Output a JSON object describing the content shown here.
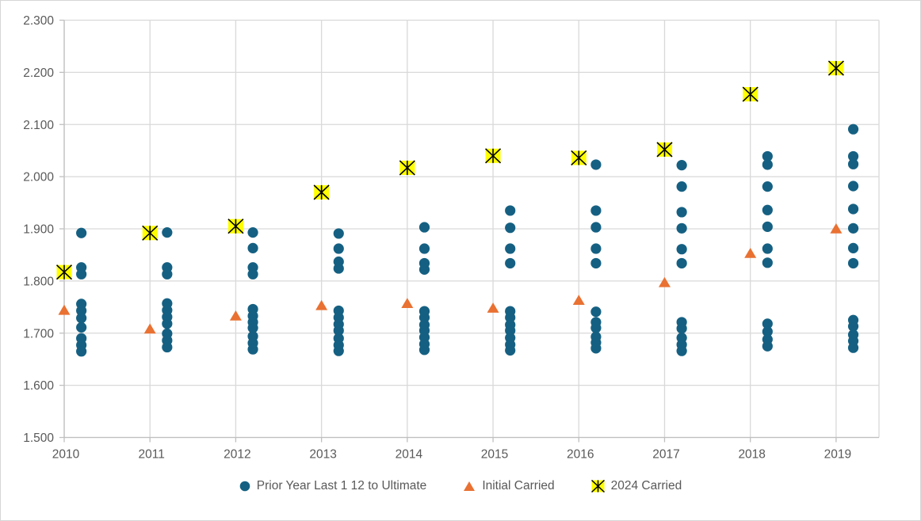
{
  "chart_data": {
    "type": "scatter",
    "title": "",
    "xlabel": "",
    "ylabel": "",
    "grid": true,
    "legend_position": "bottom",
    "x_axis": {
      "min": 2010,
      "max": 2019.5,
      "tick_years": [
        2010,
        2011,
        2012,
        2013,
        2014,
        2015,
        2016,
        2017,
        2018,
        2019
      ],
      "tick_labels": [
        "2010",
        "2011",
        "2012",
        "2013",
        "2014",
        "2015",
        "2016",
        "2017",
        "2018",
        "2019"
      ]
    },
    "y_axis": {
      "min": 1.5,
      "max": 2.3,
      "step": 0.1,
      "tick_labels": [
        "1.500",
        "1.600",
        "1.700",
        "1.800",
        "1.900",
        "2.000",
        "2.100",
        "2.200",
        "2.300"
      ]
    },
    "series": [
      {
        "name": "Prior Year Last 1 12 to Ultimate",
        "marker": "circle",
        "color": "#156082",
        "x_offset": 0.2,
        "points": [
          {
            "x": 2010,
            "ys": [
              1.892,
              1.826,
              1.813,
              1.756,
              1.743,
              1.729,
              1.711,
              1.69,
              1.677,
              1.665
            ]
          },
          {
            "x": 2011,
            "ys": [
              1.893,
              1.826,
              1.813,
              1.757,
              1.744,
              1.731,
              1.718,
              1.699,
              1.686,
              1.673
            ]
          },
          {
            "x": 2012,
            "ys": [
              1.893,
              1.863,
              1.826,
              1.813,
              1.746,
              1.733,
              1.721,
              1.71,
              1.694,
              1.681,
              1.669
            ]
          },
          {
            "x": 2013,
            "ys": [
              1.891,
              1.862,
              1.837,
              1.824,
              1.743,
              1.73,
              1.717,
              1.705,
              1.69,
              1.677,
              1.666
            ]
          },
          {
            "x": 2014,
            "ys": [
              1.903,
              1.862,
              1.834,
              1.822,
              1.742,
              1.73,
              1.716,
              1.705,
              1.692,
              1.679,
              1.668
            ]
          },
          {
            "x": 2015,
            "ys": [
              1.935,
              1.902,
              1.862,
              1.834,
              1.742,
              1.73,
              1.716,
              1.705,
              1.691,
              1.678,
              1.667
            ]
          },
          {
            "x": 2016,
            "ys": [
              2.023,
              1.935,
              1.903,
              1.862,
              1.834,
              1.741,
              1.721,
              1.71,
              1.693,
              1.682,
              1.671
            ]
          },
          {
            "x": 2017,
            "ys": [
              2.022,
              1.981,
              1.932,
              1.901,
              1.861,
              1.834,
              1.721,
              1.709,
              1.691,
              1.678,
              1.666
            ]
          },
          {
            "x": 2018,
            "ys": [
              2.039,
              2.023,
              1.981,
              1.936,
              1.904,
              1.862,
              1.835,
              1.718,
              1.703,
              1.688,
              1.675
            ]
          },
          {
            "x": 2019,
            "ys": [
              2.091,
              2.039,
              2.024,
              1.982,
              1.938,
              1.901,
              1.863,
              1.834,
              1.725,
              1.713,
              1.697,
              1.685,
              1.672
            ]
          }
        ]
      },
      {
        "name": "Initial Carried",
        "marker": "triangle",
        "color": "#E97132",
        "x_offset": 0,
        "points": [
          {
            "x": 2010,
            "ys": [
              1.744
            ]
          },
          {
            "x": 2011,
            "ys": [
              1.708
            ]
          },
          {
            "x": 2012,
            "ys": [
              1.733
            ]
          },
          {
            "x": 2013,
            "ys": [
              1.753
            ]
          },
          {
            "x": 2014,
            "ys": [
              1.757
            ]
          },
          {
            "x": 2015,
            "ys": [
              1.748
            ]
          },
          {
            "x": 2016,
            "ys": [
              1.763
            ]
          },
          {
            "x": 2017,
            "ys": [
              1.797
            ]
          },
          {
            "x": 2018,
            "ys": [
              1.853
            ]
          },
          {
            "x": 2019,
            "ys": [
              1.9
            ]
          }
        ]
      },
      {
        "name": "2024 Carried",
        "marker": "star-x",
        "color": "#FFFF00",
        "line_color": "#000000",
        "x_offset": 0,
        "points": [
          {
            "x": 2010,
            "ys": [
              1.817
            ]
          },
          {
            "x": 2011,
            "ys": [
              1.892
            ]
          },
          {
            "x": 2012,
            "ys": [
              1.905
            ]
          },
          {
            "x": 2013,
            "ys": [
              1.97
            ]
          },
          {
            "x": 2014,
            "ys": [
              2.017
            ]
          },
          {
            "x": 2015,
            "ys": [
              2.04
            ]
          },
          {
            "x": 2016,
            "ys": [
              2.036
            ]
          },
          {
            "x": 2017,
            "ys": [
              2.052
            ]
          },
          {
            "x": 2018,
            "ys": [
              2.158
            ]
          },
          {
            "x": 2019,
            "ys": [
              2.208
            ]
          }
        ]
      }
    ],
    "colors": {
      "gridline": "#D9D9D9",
      "axis_line": "#BFBFBF",
      "tick_label": "#595959",
      "legend_text": "#595959",
      "background": "#FFFFFF"
    }
  }
}
